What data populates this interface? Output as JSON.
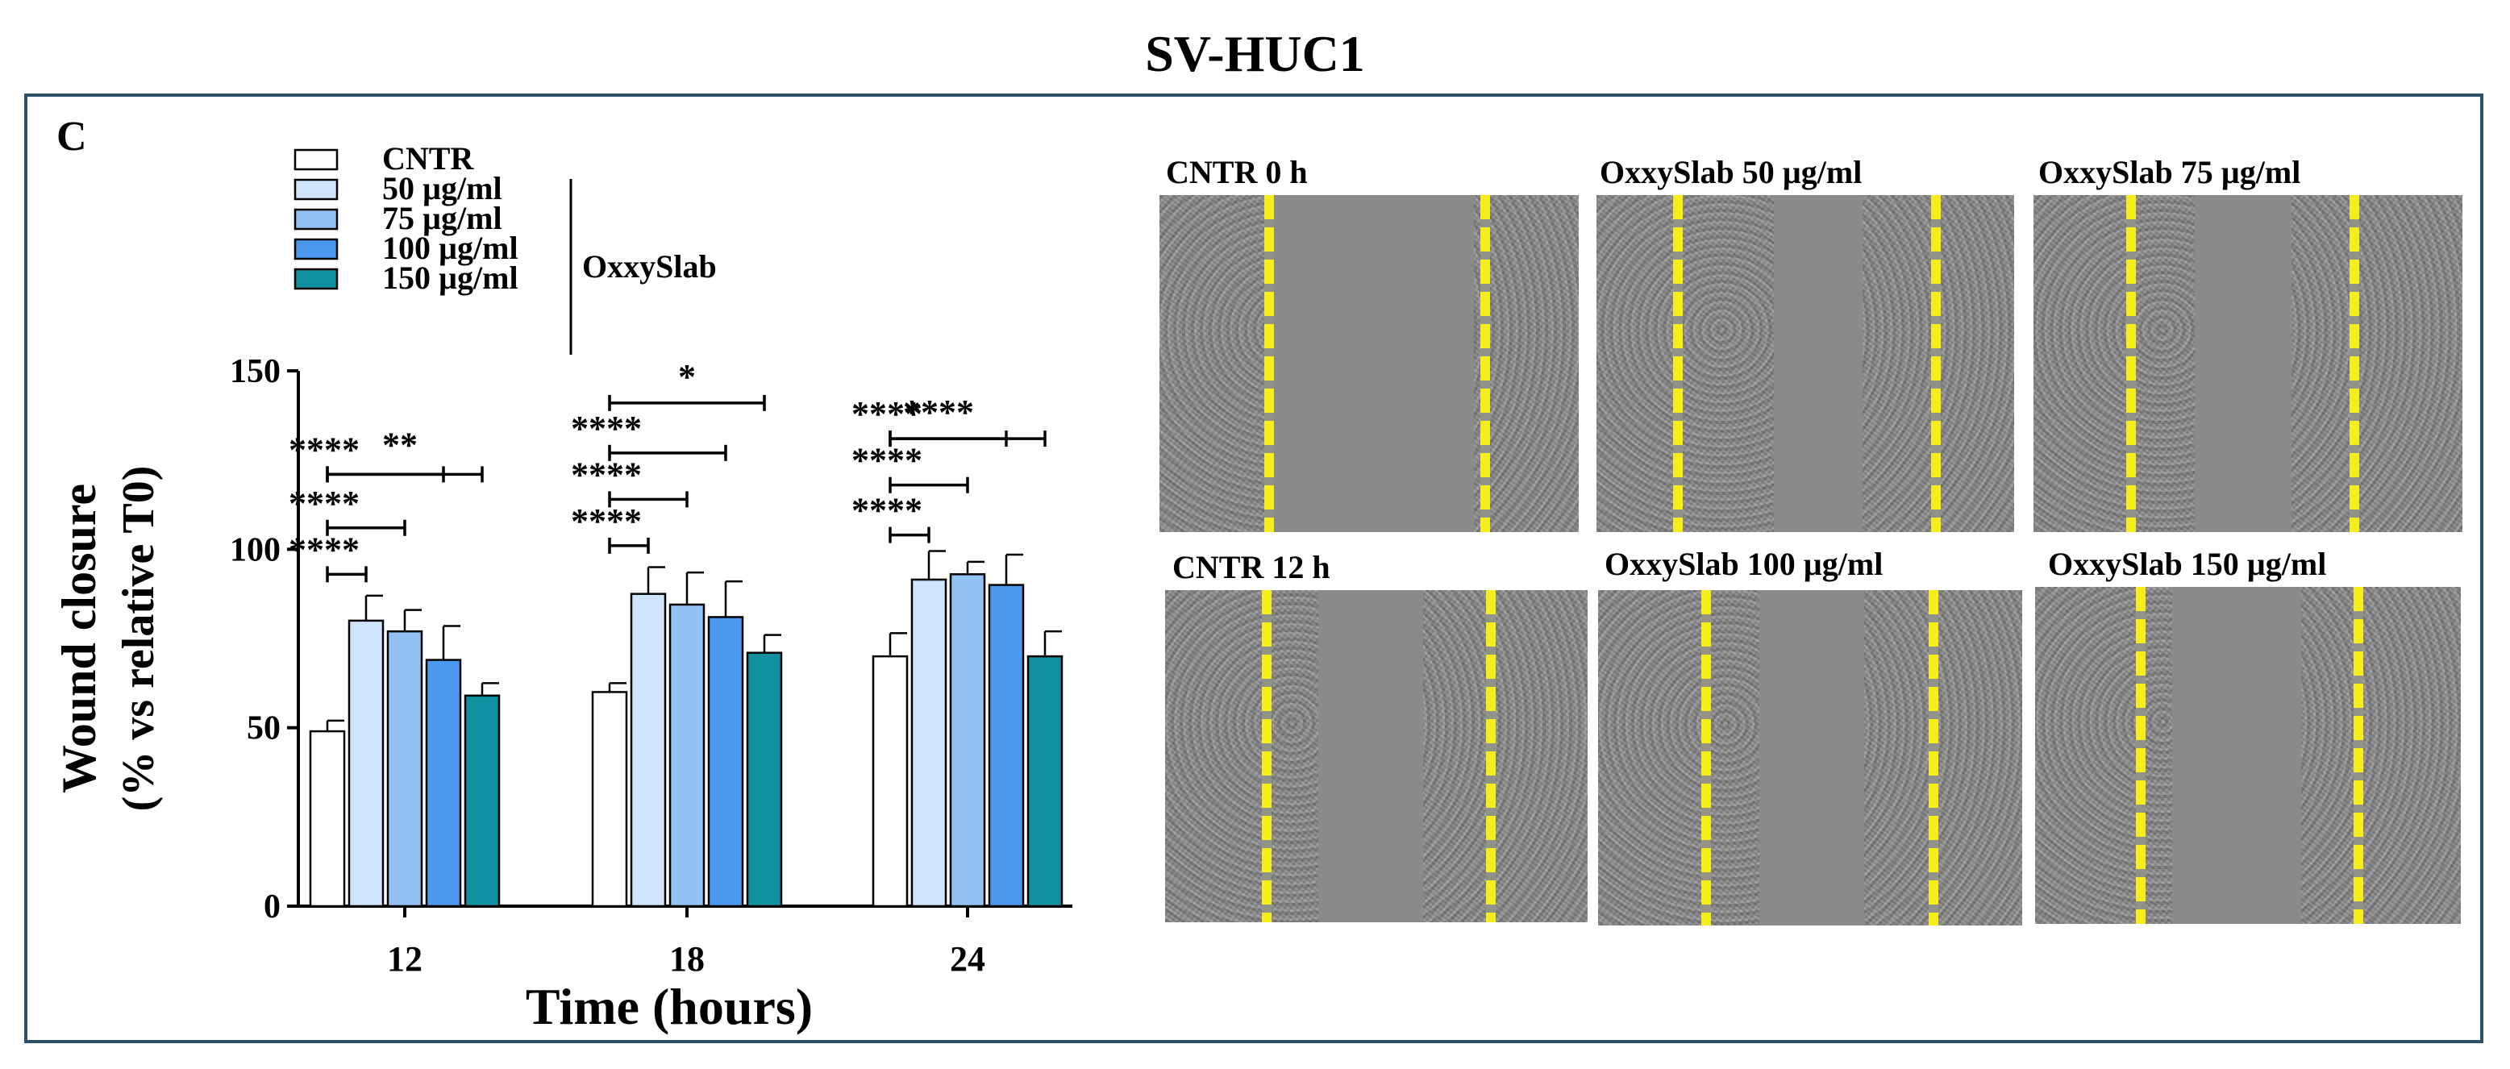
{
  "figure": {
    "title": "SV-HUC1",
    "panel_letter": "C"
  },
  "colors": {
    "CNTR": "#ffffff",
    "50": "#cfe3fa",
    "75": "#94c1f3",
    "100": "#4a99ee",
    "150": "#11909f",
    "frame": "#2f4f6a",
    "scratch_line": "#f6ee1c"
  },
  "legend": {
    "entries": [
      "CNTR",
      "50 µg/ml",
      "75 µg/ml",
      "100 µg/ml",
      "150 µg/ml"
    ],
    "group_label": "OxxySlab"
  },
  "chart_data": {
    "type": "bar",
    "title": "",
    "xlabel": "Time (hours)",
    "ylabel": [
      "Wound closure",
      "(% vs relative T0)"
    ],
    "ylim": [
      0,
      150
    ],
    "yticks": [
      0,
      50,
      100,
      150
    ],
    "categories": [
      "12",
      "18",
      "24"
    ],
    "series": [
      {
        "name": "CNTR",
        "values": [
          49,
          60,
          70
        ],
        "errors": [
          3,
          2.5,
          6.5
        ]
      },
      {
        "name": "50 µg/ml",
        "values": [
          80,
          87.5,
          91.5
        ],
        "errors": [
          7,
          7.5,
          8
        ]
      },
      {
        "name": "75 µg/ml",
        "values": [
          77,
          84.5,
          93
        ],
        "errors": [
          6,
          9,
          3.5
        ]
      },
      {
        "name": "100 µg/ml",
        "values": [
          69,
          81,
          90
        ],
        "errors": [
          9.5,
          10,
          8.5
        ]
      },
      {
        "name": "150 µg/ml",
        "values": [
          59,
          71,
          70
        ],
        "errors": [
          3.5,
          5,
          7
        ]
      }
    ],
    "grid": false,
    "legend_position": "top-left",
    "significance": [
      {
        "category": "12",
        "from": 0,
        "to": 1,
        "label": "****",
        "level": 93
      },
      {
        "category": "12",
        "from": 0,
        "to": 2,
        "label": "****",
        "level": 106
      },
      {
        "category": "12",
        "from": 0,
        "to": 3,
        "label": "****",
        "level": 121
      },
      {
        "category": "12",
        "from": 0,
        "to": 4,
        "label": "**",
        "level": 121,
        "label_only_offset": true
      },
      {
        "category": "18",
        "from": 0,
        "to": 1,
        "label": "****",
        "level": 101
      },
      {
        "category": "18",
        "from": 0,
        "to": 2,
        "label": "****",
        "level": 114
      },
      {
        "category": "18",
        "from": 0,
        "to": 3,
        "label": "****",
        "level": 127
      },
      {
        "category": "18",
        "from": 0,
        "to": 4,
        "label": "*",
        "level": 141
      },
      {
        "category": "24",
        "from": 0,
        "to": 1,
        "label": "****",
        "level": 104
      },
      {
        "category": "24",
        "from": 0,
        "to": 2,
        "label": "****",
        "level": 118
      },
      {
        "category": "24",
        "from": 0,
        "to": 3,
        "label": "****",
        "level": 131
      },
      {
        "category": "24",
        "from": 0,
        "to": 4,
        "label": "****",
        "level": 131
      }
    ]
  },
  "micrographs": [
    {
      "label": "CNTR 0 h",
      "gap": "wide"
    },
    {
      "label": "OxxySlab  50 µg/ml",
      "gap": "closing"
    },
    {
      "label": "OxxySlab  75 µg/ml",
      "gap": "closing"
    },
    {
      "label": "CNTR 12 h",
      "gap": "medium"
    },
    {
      "label": "OxxySlab  100 µg/ml",
      "gap": "closing"
    },
    {
      "label": "OxxySlab  150 µg/ml",
      "gap": "medium"
    }
  ]
}
